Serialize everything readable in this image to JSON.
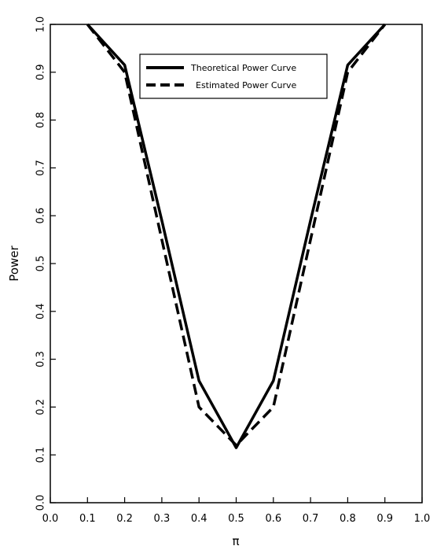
{
  "chart_data": {
    "type": "line",
    "xlabel": "π",
    "ylabel": "Power",
    "xlim": [
      0.0,
      1.0
    ],
    "ylim": [
      0.0,
      1.0
    ],
    "grid": false,
    "legend_position": "top-center",
    "x_ticks": [
      "0.0",
      "0.1",
      "0.2",
      "0.3",
      "0.4",
      "0.5",
      "0.6",
      "0.7",
      "0.8",
      "0.9",
      "1.0"
    ],
    "y_ticks": [
      "0.0",
      "0.1",
      "0.2",
      "0.3",
      "0.4",
      "0.5",
      "0.6",
      "0.7",
      "0.8",
      "0.9",
      "1.0"
    ],
    "series": [
      {
        "name": "Theoretical Power Curve",
        "style": "solid",
        "color": "#000000",
        "x": [
          0.1,
          0.2,
          0.3,
          0.4,
          0.5,
          0.6,
          0.7,
          0.8,
          0.9
        ],
        "y": [
          1.0,
          0.915,
          0.59,
          0.255,
          0.115,
          0.255,
          0.59,
          0.915,
          1.0
        ]
      },
      {
        "name": "Estimated Power Curve",
        "style": "dashed",
        "color": "#000000",
        "x": [
          0.1,
          0.2,
          0.3,
          0.4,
          0.5,
          0.6,
          0.7,
          0.8,
          0.9
        ],
        "y": [
          1.0,
          0.9,
          0.55,
          0.2,
          0.12,
          0.2,
          0.55,
          0.9,
          1.0
        ]
      }
    ]
  }
}
